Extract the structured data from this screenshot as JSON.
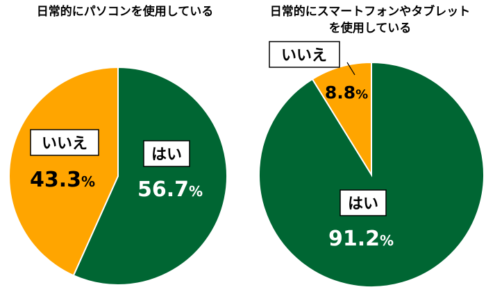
{
  "chart_data": [
    {
      "type": "pie",
      "title": "日常的にパソコンを使用している",
      "title_lines": [
        "日常的にパソコンを使用している"
      ],
      "unit": "%",
      "slices": [
        {
          "label": "はい",
          "value": 56.7,
          "value_text": "56.7",
          "color": "#006633",
          "label_color": "#ffffff"
        },
        {
          "label": "いいえ",
          "value": 43.3,
          "value_text": "43.3",
          "color": "#ffa500",
          "label_color": "#000000"
        }
      ]
    },
    {
      "type": "pie",
      "title": "日常的にスマートフォンやタブレットを使用している",
      "title_lines": [
        "日常的にスマートフォンやタブレット",
        "を使用している"
      ],
      "unit": "%",
      "slices": [
        {
          "label": "はい",
          "value": 91.2,
          "value_text": "91.2",
          "color": "#006633",
          "label_color": "#ffffff"
        },
        {
          "label": "いいえ",
          "value": 8.8,
          "value_text": "8.8",
          "color": "#ffa500",
          "label_color": "#000000"
        }
      ]
    }
  ]
}
